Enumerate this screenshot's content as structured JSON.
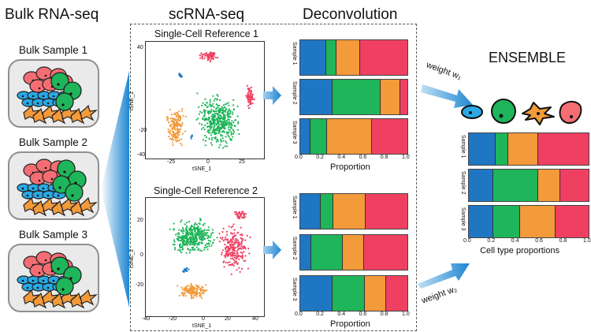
{
  "headers": {
    "bulk": "Bulk RNA-seq",
    "scrna": "scRNA-seq",
    "deconv": "Deconvolution",
    "ensemble": "ENSEMBLE"
  },
  "bulk_samples": [
    "Bulk Sample 1",
    "Bulk Sample 2",
    "Bulk Sample 3"
  ],
  "references": [
    {
      "title": "Single-Cell Reference 1",
      "xlabel": "tSNE_1",
      "ylabel": "tSNE_2",
      "xticks": [
        "-25",
        "0",
        "25"
      ],
      "yticks": [
        "40",
        "20",
        "0",
        "-20",
        "-40"
      ]
    },
    {
      "title": "Single-Cell Reference 2",
      "xlabel": "tSNE_1",
      "ylabel": "tSNE_2",
      "xticks": [
        "-40",
        "-20",
        "0",
        "20",
        "40"
      ],
      "yticks": [
        "20",
        "0",
        "-20"
      ]
    }
  ],
  "weights": {
    "w1": "weight w₁",
    "w2": "weight w₂"
  },
  "colors": {
    "blue": "#1f77c4",
    "green": "#1fb55a",
    "orange": "#f39a3a",
    "red": "#ef4062"
  },
  "chart_data": [
    {
      "type": "bar",
      "orientation": "horizontal-stacked",
      "categories": [
        "Sample 1",
        "Sample 2",
        "Sample 3"
      ],
      "series": [
        {
          "values": [
            0.24,
            0.3,
            0.09
          ]
        },
        {
          "values": [
            0.09,
            0.45,
            0.15
          ]
        },
        {
          "values": [
            0.22,
            0.18,
            0.42
          ]
        },
        {
          "values": [
            0.45,
            0.07,
            0.34
          ]
        }
      ],
      "xlabel": "Proportion",
      "xticks": [
        "0.0",
        "0.2",
        "0.4",
        "0.6",
        "0.8",
        "1.0"
      ],
      "xlim": [
        0,
        1
      ]
    },
    {
      "type": "bar",
      "orientation": "horizontal-stacked",
      "categories": [
        "Sample 1",
        "Sample 2",
        "Sample 3"
      ],
      "series": [
        {
          "values": [
            0.19,
            0.1,
            0.3
          ]
        },
        {
          "values": [
            0.11,
            0.29,
            0.3
          ]
        },
        {
          "values": [
            0.3,
            0.2,
            0.2
          ]
        },
        {
          "values": [
            0.4,
            0.41,
            0.2
          ]
        }
      ],
      "xlabel": "Proportion",
      "xticks": [
        "0.0",
        "0.2",
        "0.4",
        "0.6",
        "0.8",
        "1.0"
      ],
      "xlim": [
        0,
        1
      ]
    },
    {
      "type": "bar",
      "orientation": "horizontal-stacked",
      "categories": [
        "Sample 1",
        "Sample 2",
        "Sample 3"
      ],
      "series": [
        {
          "values": [
            0.22,
            0.2,
            0.2
          ]
        },
        {
          "values": [
            0.1,
            0.38,
            0.22
          ]
        },
        {
          "values": [
            0.25,
            0.18,
            0.3
          ]
        },
        {
          "values": [
            0.43,
            0.24,
            0.28
          ]
        }
      ],
      "xlabel": "Cell type proportions",
      "xticks": [
        "0.0",
        "0.2",
        "0.4",
        "0.6",
        "0.8",
        "1.0"
      ],
      "xlim": [
        0,
        1
      ]
    }
  ]
}
